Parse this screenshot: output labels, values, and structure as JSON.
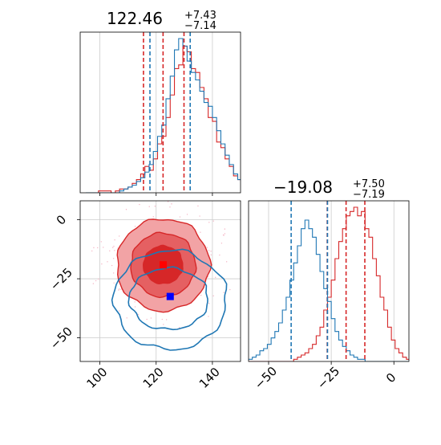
{
  "colors": {
    "red": "#d62728",
    "blue": "#1f77b4",
    "red_fill_light": "#f2a3a5",
    "red_fill_mid": "#e56062",
    "red_fill_dark": "#d62728",
    "grid": "#cccccc",
    "marker_red": "#ff0000",
    "marker_blue": "#0000ff"
  },
  "chart_data": [
    {
      "panel": "x-marginal",
      "type": "histogram-step",
      "title_main": "122.46",
      "title_sup": "+7.43",
      "title_sub": "−7.14",
      "xlim": [
        93,
        150
      ],
      "grid": true,
      "x_ticks": [
        100,
        120,
        140
      ],
      "bins_start": 95,
      "bin_width": 1.5,
      "series": [
        {
          "color": "red",
          "counts": [
            0,
            0,
            0,
            1,
            1,
            1,
            0,
            1,
            2,
            2,
            3,
            5,
            7,
            10,
            14,
            12,
            18,
            26,
            30,
            40,
            52,
            66,
            68,
            78,
            75,
            66,
            64,
            56,
            50,
            40,
            38,
            27,
            24,
            18,
            14,
            9,
            7,
            5,
            4,
            3,
            2,
            1,
            1,
            0
          ]
        },
        {
          "color": "blue",
          "counts": [
            0,
            0,
            0,
            0,
            0,
            0,
            0,
            0,
            1,
            2,
            3,
            4,
            6,
            8,
            11,
            15,
            22,
            30,
            36,
            50,
            62,
            76,
            82,
            78,
            70,
            64,
            60,
            54,
            48,
            46,
            40,
            33,
            26,
            20,
            15,
            10,
            7,
            4,
            3,
            2,
            1,
            1,
            0,
            0
          ]
        }
      ],
      "quantile_lines": [
        {
          "color": "red",
          "x": [
            115.5,
            122.46,
            129.9
          ]
        },
        {
          "color": "blue",
          "x": [
            117.8,
            132.1
          ]
        }
      ]
    },
    {
      "panel": "y-marginal",
      "type": "histogram-step",
      "title_main": "−19.08",
      "title_sup": "+7.50",
      "title_sub": "−7.19",
      "xlim": [
        -58,
        6
      ],
      "grid": true,
      "x_ticks": [
        -50,
        -25,
        0
      ],
      "x_tick_labels": [
        "−50",
        "−25",
        "0"
      ],
      "bins_start": -58,
      "bin_width": 1.5,
      "series": [
        {
          "color": "red",
          "counts": [
            0,
            0,
            0,
            0,
            0,
            0,
            0,
            0,
            0,
            0,
            0,
            0,
            1,
            2,
            3,
            4,
            6,
            8,
            12,
            16,
            24,
            30,
            38,
            48,
            56,
            62,
            68,
            70,
            72,
            68,
            70,
            62,
            58,
            48,
            40,
            30,
            24,
            16,
            10,
            6,
            4,
            2,
            1,
            0,
            0
          ]
        },
        {
          "color": "blue",
          "counts": [
            1,
            2,
            3,
            5,
            6,
            8,
            11,
            14,
            18,
            24,
            30,
            38,
            46,
            54,
            62,
            66,
            62,
            58,
            50,
            42,
            34,
            28,
            20,
            14,
            10,
            7,
            5,
            3,
            2,
            1,
            1,
            0,
            0,
            0,
            0,
            0,
            0,
            0,
            0,
            0,
            0,
            0,
            0,
            0,
            0
          ]
        }
      ],
      "quantile_lines": [
        {
          "color": "red",
          "x": [
            -26.6,
            -19.08,
            -11.6
          ]
        },
        {
          "color": "blue",
          "x": [
            -41.0,
            -26.5
          ]
        }
      ]
    },
    {
      "panel": "2d",
      "type": "contour",
      "xlim": [
        93,
        150
      ],
      "ylim": [
        -60,
        8
      ],
      "grid": true,
      "x_ticks": [
        100,
        120,
        140
      ],
      "y_ticks": [
        0,
        -25,
        -50
      ],
      "y_tick_labels": [
        "0",
        "−25",
        "−50"
      ],
      "red_filled_contours": [
        {
          "cx": 122.5,
          "cy": -19.1,
          "rx": 16.5,
          "ry": 19.5
        },
        {
          "cx": 122.5,
          "cy": -19.1,
          "rx": 11.5,
          "ry": 13.5
        },
        {
          "cx": 122.5,
          "cy": -19.1,
          "rx": 7,
          "ry": 8
        }
      ],
      "blue_contours": [
        {
          "cx": 124.5,
          "cy": -33.5,
          "rx": 14,
          "ry": 13
        },
        {
          "cx": 125,
          "cy": -34,
          "rx": 20,
          "ry": 21
        }
      ],
      "markers": [
        {
          "color": "marker_red",
          "x": 122.5,
          "y": -19.1
        },
        {
          "color": "marker_blue",
          "x": 125,
          "y": -32.5
        }
      ]
    }
  ]
}
